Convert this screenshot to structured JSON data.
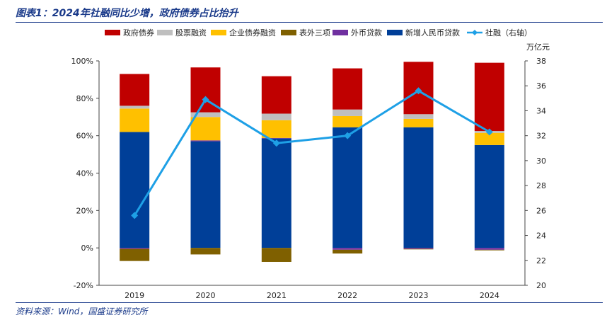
{
  "title": "图表1：2024年社融同比少增，政府债券占比抬升",
  "source": "资料来源：Wind，国盛证券研究所",
  "chart_data": {
    "type": "bar",
    "stacked": true,
    "categories": [
      "2019",
      "2020",
      "2021",
      "2022",
      "2023",
      "2024"
    ],
    "left_axis": {
      "range": [
        -0.2,
        1.0
      ],
      "ticks": [
        "-20%",
        "0%",
        "20%",
        "40%",
        "60%",
        "80%",
        "100%"
      ]
    },
    "right_axis": {
      "range": [
        20,
        38
      ],
      "ticks": [
        "20",
        "22",
        "24",
        "26",
        "28",
        "30",
        "32",
        "34",
        "36",
        "38"
      ],
      "unit": "万亿元"
    },
    "legend_position": "top",
    "series": [
      {
        "name": "新增人民币贷款",
        "color": "#003f98",
        "axis": "left",
        "values": [
          0.62,
          0.57,
          0.585,
          0.645,
          0.645,
          0.55
        ]
      },
      {
        "name": "外币贷款",
        "color": "#7030a0",
        "axis": "left",
        "values": [
          -0.005,
          0.005,
          0.003,
          -0.01,
          -0.005,
          -0.01
        ]
      },
      {
        "name": "企业债券融资",
        "color": "#ffc000",
        "axis": "left",
        "values": [
          0.125,
          0.125,
          0.095,
          0.06,
          0.045,
          0.065
        ]
      },
      {
        "name": "股票融资",
        "color": "#bfbfbf",
        "axis": "left",
        "values": [
          0.015,
          0.025,
          0.035,
          0.035,
          0.025,
          0.01
        ]
      },
      {
        "name": "政府债券",
        "color": "#c00000",
        "axis": "left",
        "values": [
          0.17,
          0.24,
          0.2,
          0.22,
          0.28,
          0.365
        ]
      },
      {
        "name": "表外三项",
        "color": "#7f6000",
        "axis": "left",
        "values": [
          -0.065,
          -0.035,
          -0.075,
          -0.02,
          -0.002,
          -0.002
        ]
      },
      {
        "name": "社融（右轴）",
        "color": "#1ea0e6",
        "axis": "right",
        "type": "line",
        "values": [
          25.6,
          34.9,
          31.4,
          32.0,
          35.6,
          32.3
        ]
      }
    ],
    "legend_order": [
      "政府债券",
      "股票融资",
      "企业债券融资",
      "表外三项",
      "外币贷款",
      "新增人民币贷款",
      "社融（右轴）"
    ]
  }
}
